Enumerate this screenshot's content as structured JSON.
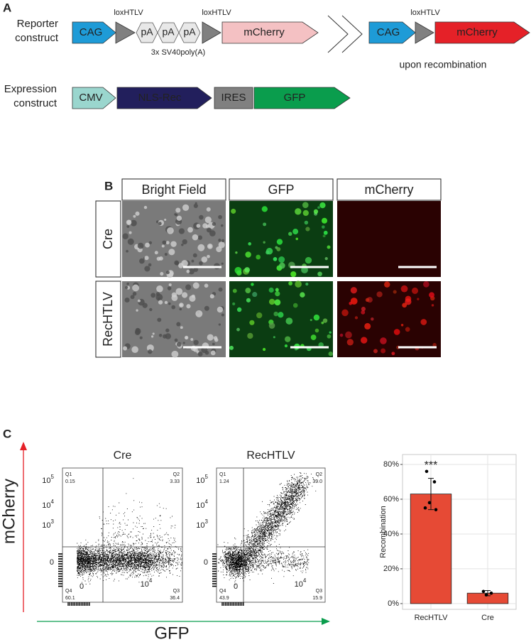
{
  "panel_a": {
    "label": "A",
    "reporter": {
      "title": [
        "Reporter",
        "construct"
      ],
      "lox": [
        "loxHTLV",
        "loxHTLV"
      ],
      "elements": [
        "CAG",
        "pA",
        "pA",
        "pA",
        "mCherry"
      ],
      "note": "3x SV40poly(A)"
    },
    "recombined": {
      "lox": "loxHTLV",
      "elements": [
        "CAG",
        "mCherry"
      ],
      "caption": "upon recombination"
    },
    "expression": {
      "title": [
        "Expression",
        "construct"
      ],
      "elements": [
        "CMV",
        "NLS-Rec",
        "IRES",
        "GFP"
      ]
    }
  },
  "panel_b": {
    "label": "B",
    "columns": [
      "Bright Field",
      "GFP",
      "mCherry"
    ],
    "rows": [
      "Cre",
      "RecHTLV"
    ]
  },
  "panel_c": {
    "label": "C",
    "y_axis": "mCherry",
    "x_axis": "GFP",
    "flow_yticks": [
      [
        "10",
        "5"
      ],
      [
        "10",
        "4"
      ],
      [
        "10",
        "3"
      ],
      [
        "0"
      ]
    ],
    "flow_xticks": [
      [
        "0"
      ],
      [
        "10",
        "4"
      ]
    ],
    "flow_plots": [
      {
        "title": "Cre",
        "quadrants": [
          {
            "name": "Q1",
            "value": "0.15"
          },
          {
            "name": "Q2",
            "value": "3.33"
          },
          {
            "name": "Q3",
            "value": "36.4"
          },
          {
            "name": "Q4",
            "value": "60.1"
          }
        ]
      },
      {
        "title": "RecHTLV",
        "quadrants": [
          {
            "name": "Q1",
            "value": "1.24"
          },
          {
            "name": "Q2",
            "value": "39.0"
          },
          {
            "name": "Q3",
            "value": "15.9"
          },
          {
            "name": "Q4",
            "value": "43.9"
          }
        ]
      }
    ]
  },
  "chart_data": {
    "type": "bar",
    "y_label": "Recombination",
    "categories": [
      "RecHTLV",
      "Cre"
    ],
    "values": [
      63,
      6
    ],
    "errors": [
      9,
      1.5
    ],
    "points": [
      [
        76,
        70,
        58,
        54,
        55
      ],
      [
        7,
        6,
        5
      ]
    ],
    "color": "#e64a35",
    "annotation": "***",
    "ylim": [
      -3.3,
      85.7
    ],
    "yticks": [
      {
        "value": 0,
        "label": "0%"
      },
      {
        "value": 20,
        "label": "20%"
      },
      {
        "value": 40,
        "label": "40%"
      },
      {
        "value": 60,
        "label": "60%"
      },
      {
        "value": 80,
        "label": "80%"
      }
    ],
    "grid": true
  }
}
